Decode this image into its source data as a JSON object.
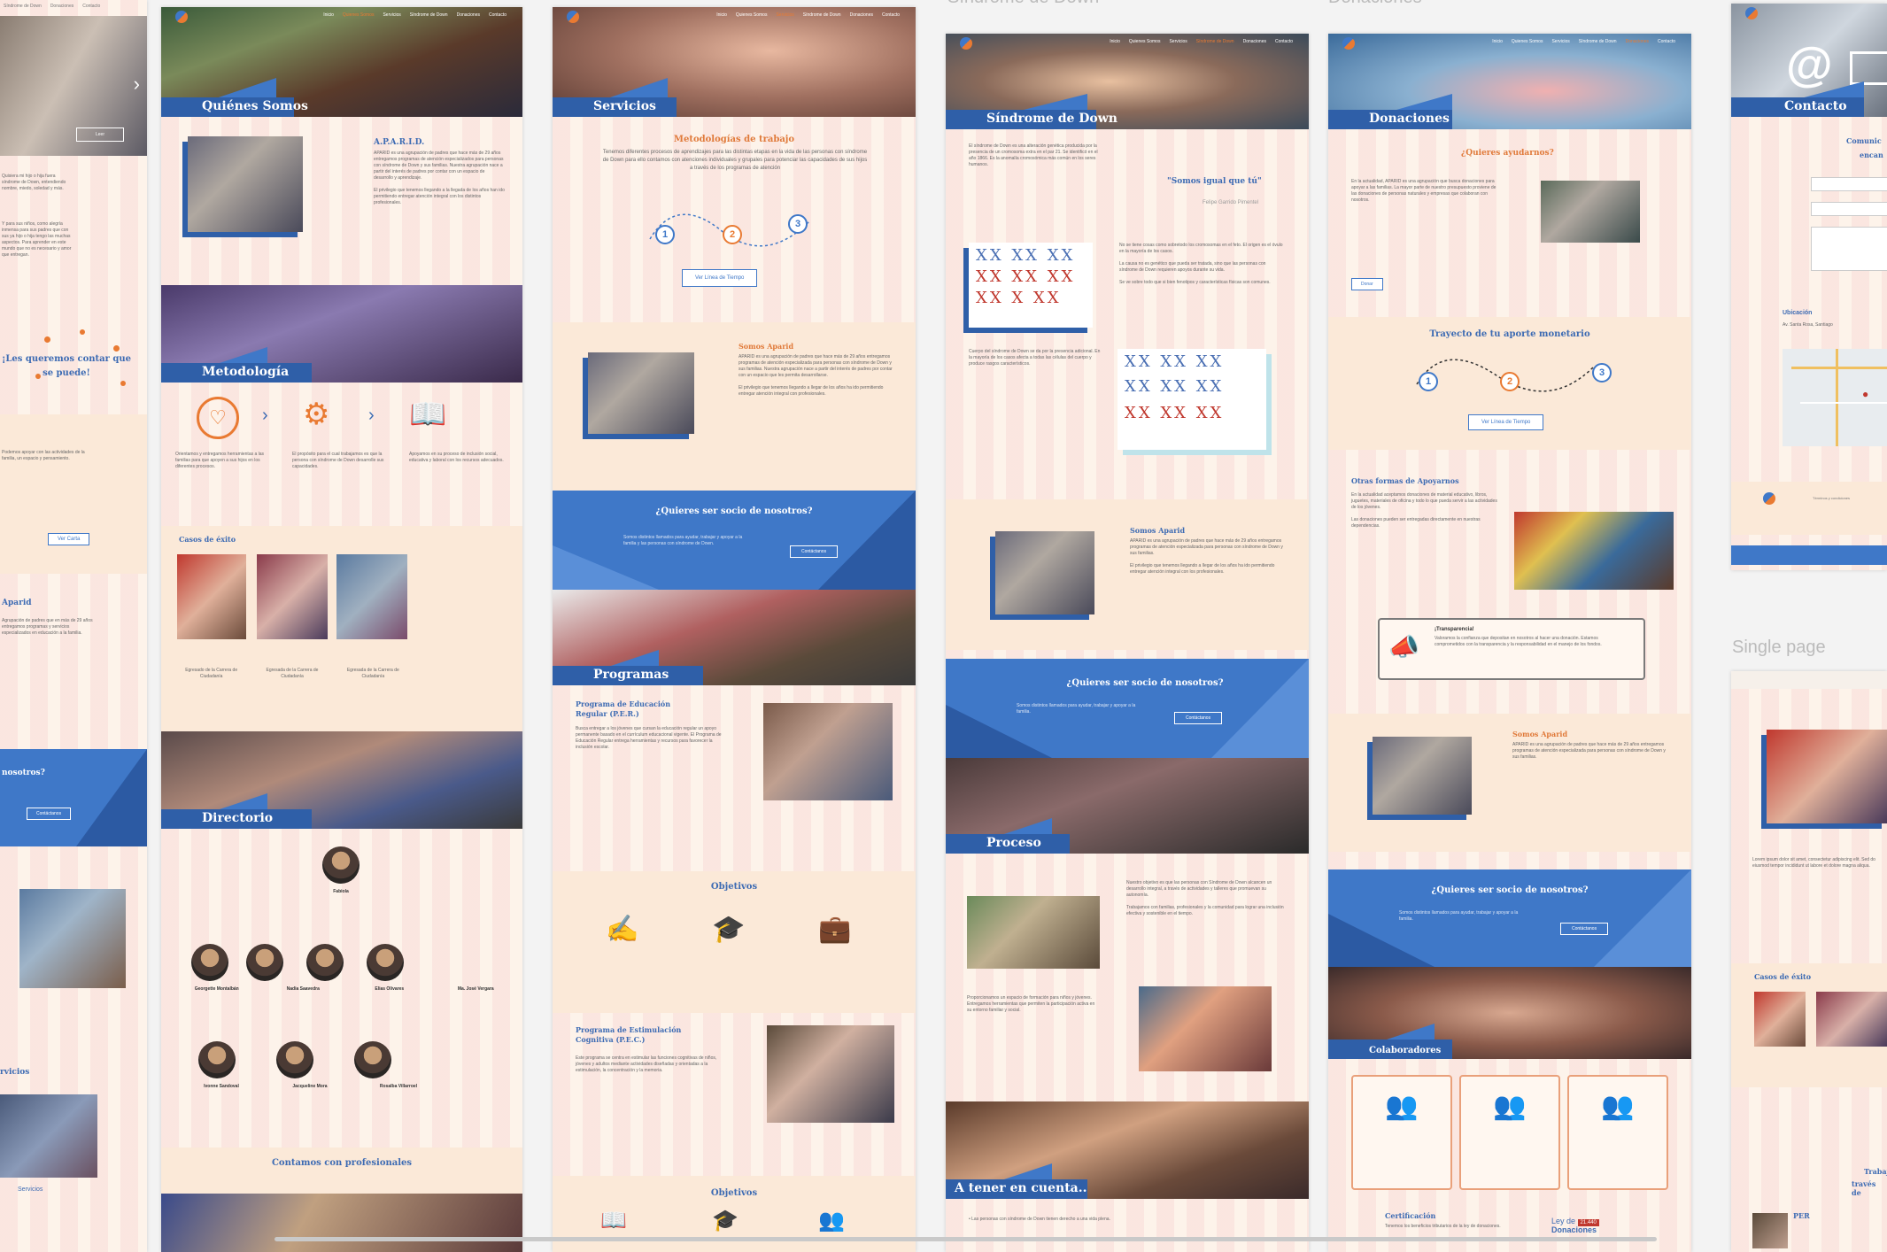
{
  "canvas_labels": {
    "sindrome": "Síndrome de Down",
    "donaciones": "Donaciones",
    "single_page": "Single page"
  },
  "nav": [
    "Inicio",
    "Quienes Somos",
    "Servicios",
    "Síndrome de Down",
    "Donaciones",
    "Contacto"
  ],
  "left_strip": {
    "nav": [
      "Síndrome de Down",
      "Donaciones",
      "Contacto"
    ],
    "button": "Leer",
    "quote": "¡Les queremos contar que se puede!",
    "mid_button": "Ver Carta",
    "apard": "Aparid",
    "socio": "nosotros?",
    "socio_button": "Contáctanos",
    "servicios": "rvicios",
    "servicios2": "Servicios"
  },
  "quienes": {
    "hero": "Quiénes Somos",
    "title": "A.P.A.R.I.D.",
    "metodologia": "Metodología",
    "casos": "Casos de éxito",
    "directorio": "Directorio",
    "profesionales": "Contamos con profesionales",
    "people": [
      "Fabiola",
      "Georgette Montalbán",
      "Nadia Saavedra",
      "Elias Olivares",
      "Ma. José Vergara",
      "Ivonne Sandoval",
      "Jacqueline Mora",
      "Rosalba Villarroel"
    ]
  },
  "servicios": {
    "hero": "Servicios",
    "title": "Metodologías de trabajo",
    "lead": "Tenemos diferentes procesos de aprendizajes para las distintas etapas en la vida de las personas con síndrome de Down para ello contamos con atenciones individuales y grupales para potenciar las capacidades de sus hijos a través de los programas de atención",
    "timeline_button": "Ver Línea de Tiempo",
    "somos": "Somos Aparid",
    "socio": "¿Quieres ser socio de nosotros?",
    "socio_button": "Contáctanos",
    "programas": "Programas",
    "per": "Programa de Educación Regular (P.E.R.)",
    "objetivos": "Objetivos",
    "pec": "Programa de Estimulación Cognitiva (P.E.C.)",
    "objetivos2": "Objetivos"
  },
  "sindrome": {
    "hero": "Síndrome de Down",
    "quote": "\"Somos igual que tú\"",
    "quote_author": "Felipe Garrido Pimentel",
    "somos": "Somos Aparid",
    "socio": "¿Quieres ser socio de nosotros?",
    "socio_button": "Contáctanos",
    "proceso": "Proceso",
    "cuenta": "A tener en cuenta.."
  },
  "donaciones": {
    "hero": "Donaciones",
    "ayudar": "¿Quieres ayudarnos?",
    "ayudar_button": "Donar",
    "trayecto": "Trayecto de tu aporte monetario",
    "timeline_button": "Ver Línea de Tiempo",
    "otras": "Otras formas de Apoyarnos",
    "transparencia": "¡Transparencia!",
    "somos": "Somos Aparid",
    "socio": "¿Quieres ser socio de nosotros?",
    "socio_button": "Contáctanos",
    "colaboradores": "Colaboradores",
    "certificacion": "Certificación",
    "ley": "Ley de",
    "ley_badge": "21.440",
    "ley2": "Donaciones"
  },
  "contacto": {
    "hero": "Contacto",
    "comunica": "Comunic",
    "comunica2": "encan",
    "ubicacion": "Ubicación",
    "single_nav": "Términos y condiciones",
    "casos": "Casos de éxito",
    "trabaja": "Trabaj",
    "trabaja2": "través de",
    "per": "PER"
  },
  "step_numbers": [
    "1",
    "2",
    "3"
  ]
}
